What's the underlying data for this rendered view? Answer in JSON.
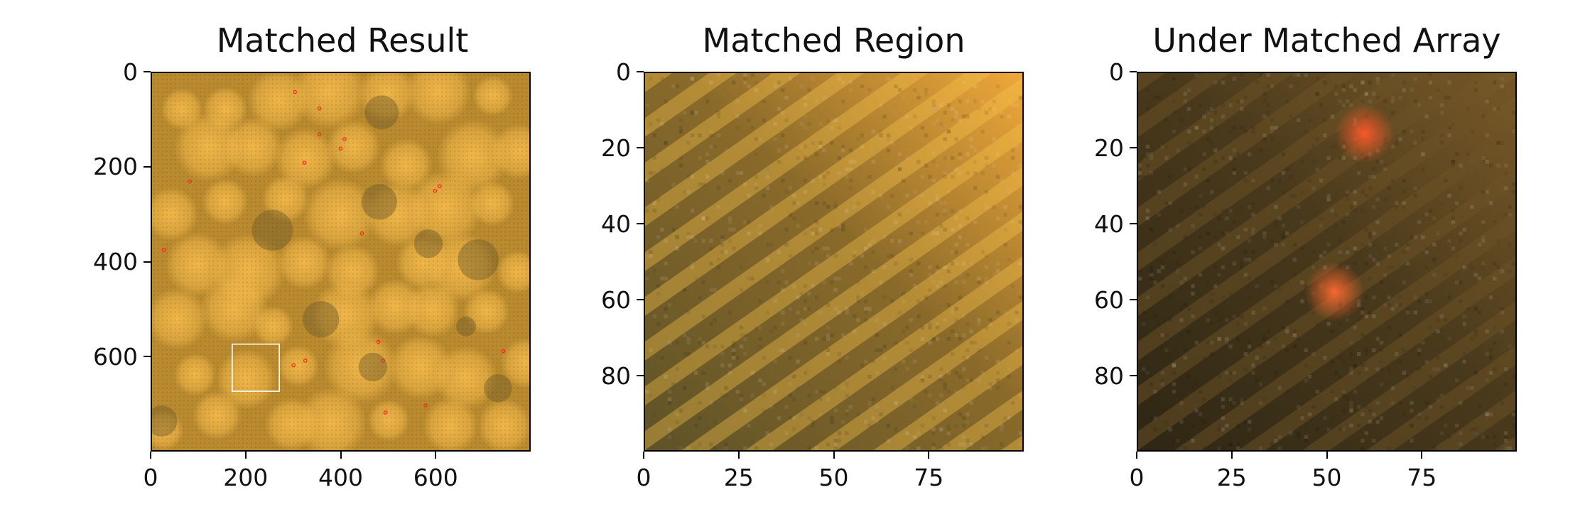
{
  "chart_data": [
    {
      "type": "heatmap",
      "title": "Matched Result",
      "xlabel": "",
      "ylabel": "",
      "xlim": [
        0,
        800
      ],
      "ylim": [
        800,
        0
      ],
      "xticks": [
        0,
        200,
        400,
        600
      ],
      "yticks": [
        0,
        200,
        400,
        600
      ],
      "colors": {
        "base": "#b98a2e",
        "highlight": "#f3b84a",
        "shadow": "#6f5a2a"
      },
      "annotations": [
        {
          "type": "rectangle",
          "x": [
            170,
            270
          ],
          "y": [
            575,
            675
          ],
          "color": "#ffffff"
        }
      ],
      "markers": [
        {
          "x": 303,
          "y": 40
        },
        {
          "x": 355,
          "y": 75
        },
        {
          "x": 355,
          "y": 130
        },
        {
          "x": 408,
          "y": 140
        },
        {
          "x": 400,
          "y": 160
        },
        {
          "x": 323,
          "y": 190
        },
        {
          "x": 80,
          "y": 230
        },
        {
          "x": 610,
          "y": 240
        },
        {
          "x": 600,
          "y": 250
        },
        {
          "x": 445,
          "y": 340
        },
        {
          "x": 25,
          "y": 375
        },
        {
          "x": 480,
          "y": 570
        },
        {
          "x": 325,
          "y": 610
        },
        {
          "x": 300,
          "y": 620
        },
        {
          "x": 490,
          "y": 610
        },
        {
          "x": 745,
          "y": 590
        },
        {
          "x": 580,
          "y": 705
        },
        {
          "x": 495,
          "y": 720
        }
      ],
      "marker_color": "#ff2020"
    },
    {
      "type": "heatmap",
      "title": "Matched Region",
      "xlabel": "",
      "ylabel": "",
      "xlim": [
        0,
        100
      ],
      "ylim": [
        100,
        0
      ],
      "xticks": [
        0,
        25,
        50,
        75
      ],
      "yticks": [
        0,
        20,
        40,
        60,
        80
      ],
      "colors": {
        "base": "#8a6a2a",
        "highlight": "#f0a83a",
        "shadow": "#5e5228"
      }
    },
    {
      "type": "heatmap",
      "title": "Under Matched Array",
      "xlabel": "",
      "ylabel": "",
      "xlim": [
        0,
        100
      ],
      "ylim": [
        100,
        0
      ],
      "xticks": [
        0,
        25,
        50,
        75
      ],
      "yticks": [
        0,
        20,
        40,
        60,
        80
      ],
      "colors": {
        "base": "#4a3a1c",
        "highlight": "#7a5a28",
        "shadow": "#2e2614"
      },
      "hotspots": [
        {
          "x": 60,
          "y": 16,
          "color": "#ff5a2a"
        },
        {
          "x": 52,
          "y": 58,
          "color": "#ff6a30"
        }
      ]
    }
  ]
}
